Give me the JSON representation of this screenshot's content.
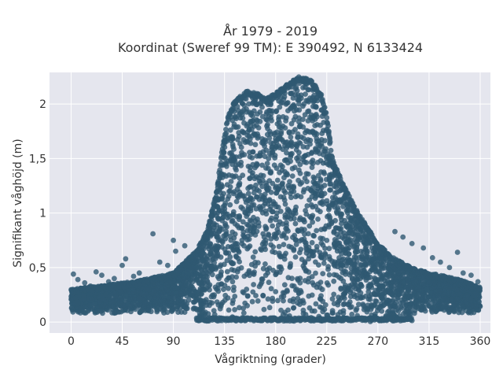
{
  "chart_data": {
    "type": "scatter",
    "title_line1": "År 1979 - 2019",
    "title_line2": "Koordinat (Sweref 99 TM): E 390492, N 6133424",
    "xlabel": "Vågriktning (grader)",
    "ylabel": "Signifikant våghöjd (m)",
    "xlim": [
      -19,
      369
    ],
    "ylim": [
      -0.1,
      2.29
    ],
    "xticks": [
      0,
      45,
      90,
      135,
      180,
      225,
      270,
      315,
      360
    ],
    "xtick_labels": [
      "0",
      "45",
      "90",
      "135",
      "180",
      "225",
      "270",
      "315",
      "360"
    ],
    "yticks": [
      0,
      0.5,
      1,
      1.5,
      2
    ],
    "ytick_labels": [
      "0",
      "0,5",
      "1",
      "1,5",
      "2"
    ],
    "grid": true,
    "colors": {
      "marker": "#2f5972",
      "plot_bg": "#e5e6ee",
      "grid": "#ffffff",
      "text": "#333333"
    },
    "envelope": {
      "direction_deg": [
        0,
        30,
        60,
        90,
        100,
        110,
        120,
        128,
        133,
        138,
        145,
        155,
        165,
        172,
        180,
        190,
        200,
        210,
        220,
        225,
        230,
        240,
        250,
        260,
        270,
        285,
        300,
        315,
        330,
        345,
        360
      ],
      "max_hs_m": [
        0.3,
        0.34,
        0.38,
        0.45,
        0.55,
        0.65,
        0.85,
        1.2,
        1.6,
        1.9,
        2.05,
        2.12,
        2.1,
        2.05,
        2.1,
        2.18,
        2.25,
        2.24,
        2.1,
        1.9,
        1.5,
        1.25,
        1.05,
        0.88,
        0.72,
        0.58,
        0.5,
        0.45,
        0.42,
        0.38,
        0.32
      ]
    },
    "outliers": [
      {
        "x": 2,
        "y": 0.44
      },
      {
        "x": 6,
        "y": 0.39
      },
      {
        "x": 12,
        "y": 0.36
      },
      {
        "x": 17,
        "y": 0.33
      },
      {
        "x": 22,
        "y": 0.46
      },
      {
        "x": 27,
        "y": 0.43
      },
      {
        "x": 33,
        "y": 0.37
      },
      {
        "x": 38,
        "y": 0.4
      },
      {
        "x": 45,
        "y": 0.52
      },
      {
        "x": 48,
        "y": 0.58
      },
      {
        "x": 55,
        "y": 0.42
      },
      {
        "x": 60,
        "y": 0.45
      },
      {
        "x": 67,
        "y": 0.38
      },
      {
        "x": 72,
        "y": 0.81
      },
      {
        "x": 78,
        "y": 0.55
      },
      {
        "x": 85,
        "y": 0.52
      },
      {
        "x": 90,
        "y": 0.75
      },
      {
        "x": 92,
        "y": 0.65
      },
      {
        "x": 100,
        "y": 0.7
      },
      {
        "x": 285,
        "y": 0.83
      },
      {
        "x": 292,
        "y": 0.78
      },
      {
        "x": 300,
        "y": 0.72
      },
      {
        "x": 310,
        "y": 0.68
      },
      {
        "x": 318,
        "y": 0.59
      },
      {
        "x": 325,
        "y": 0.55
      },
      {
        "x": 333,
        "y": 0.5
      },
      {
        "x": 340,
        "y": 0.64
      },
      {
        "x": 345,
        "y": 0.45
      },
      {
        "x": 352,
        "y": 0.43
      },
      {
        "x": 358,
        "y": 0.37
      }
    ]
  }
}
